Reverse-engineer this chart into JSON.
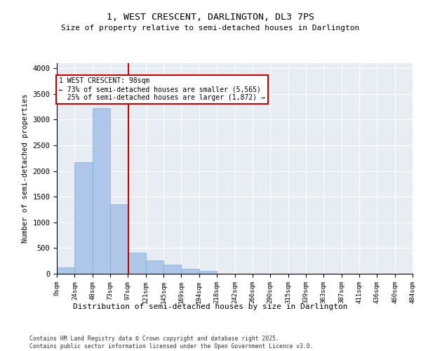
{
  "title_line1": "1, WEST CRESCENT, DARLINGTON, DL3 7PS",
  "title_line2": "Size of property relative to semi-detached houses in Darlington",
  "xlabel": "Distribution of semi-detached houses by size in Darlington",
  "ylabel": "Number of semi-detached properties",
  "footnote": "Contains HM Land Registry data © Crown copyright and database right 2025.\nContains public sector information licensed under the Open Government Licence v3.0.",
  "bin_labels": [
    "0sqm",
    "24sqm",
    "48sqm",
    "73sqm",
    "97sqm",
    "121sqm",
    "145sqm",
    "169sqm",
    "194sqm",
    "218sqm",
    "242sqm",
    "266sqm",
    "290sqm",
    "315sqm",
    "339sqm",
    "363sqm",
    "387sqm",
    "411sqm",
    "436sqm",
    "460sqm",
    "484sqm"
  ],
  "bar_values": [
    120,
    2175,
    3225,
    1350,
    410,
    260,
    175,
    95,
    55,
    0,
    0,
    0,
    0,
    0,
    0,
    0,
    0,
    0,
    0,
    0
  ],
  "bar_color": "#aec6e8",
  "bar_edge_color": "#7dadd4",
  "background_color": "#e8edf4",
  "grid_color": "#ffffff",
  "marker_label": "1 WEST CRESCENT: 98sqm",
  "marker_pct_smaller": "73% of semi-detached houses are smaller (5,565)",
  "marker_pct_larger": "25% of semi-detached houses are larger (1,872)",
  "marker_color": "#cc0000",
  "annotation_box_color": "#ffffff",
  "annotation_box_edge": "#cc0000",
  "ylim": [
    0,
    4100
  ],
  "yticks": [
    0,
    500,
    1000,
    1500,
    2000,
    2500,
    3000,
    3500,
    4000
  ]
}
